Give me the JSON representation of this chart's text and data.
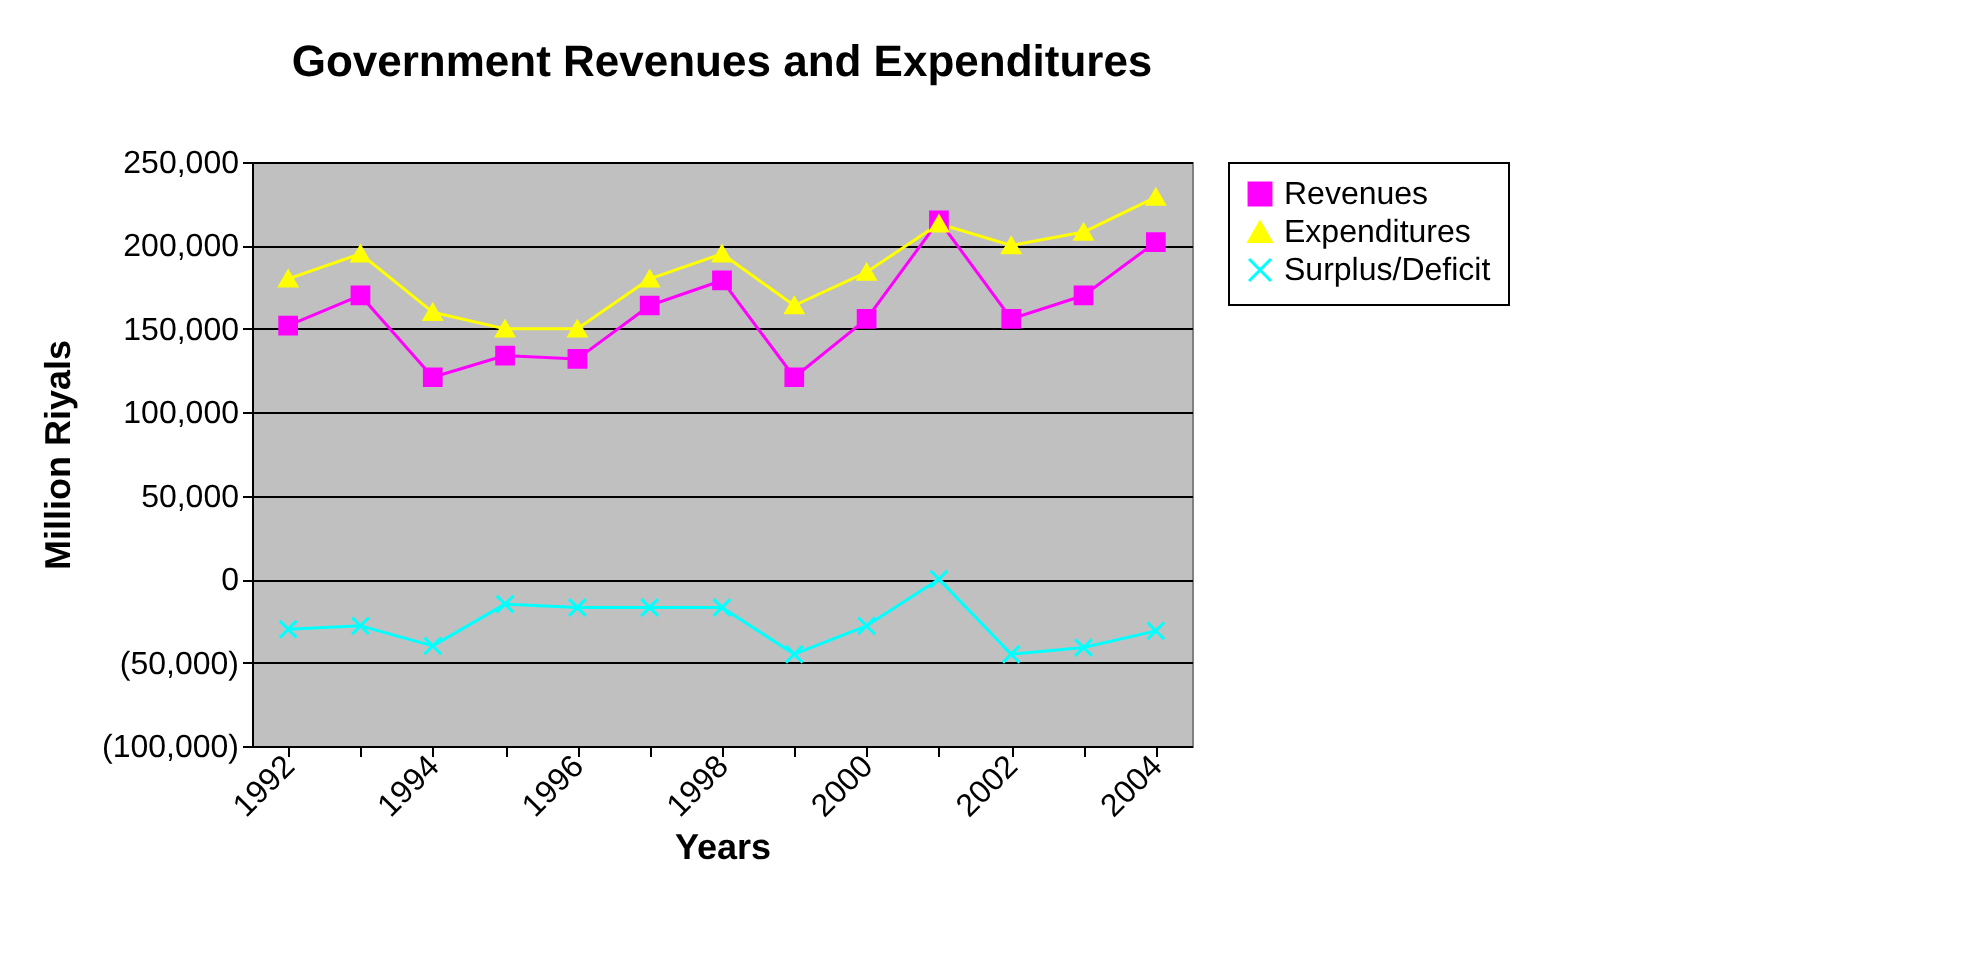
{
  "chart_data": {
    "type": "line",
    "title": "Government Revenues and Expenditures",
    "xlabel": "Years",
    "ylabel": "Million Riyals",
    "categories": [
      "1992",
      null,
      "1994",
      null,
      "1996",
      null,
      "1998",
      null,
      "2000",
      null,
      "2002",
      null,
      "2004"
    ],
    "series": [
      {
        "name": "Revenues",
        "color": "#ff00ff",
        "marker": "square",
        "values": [
          152000,
          170000,
          121000,
          134000,
          132000,
          164000,
          179000,
          121000,
          156000,
          215000,
          156000,
          170000,
          202000
        ]
      },
      {
        "name": "Expenditures",
        "color": "#ffff00",
        "marker": "triangle",
        "values": [
          180000,
          195000,
          160000,
          150000,
          150000,
          180000,
          195000,
          164000,
          184000,
          213000,
          200000,
          208000,
          229000
        ]
      },
      {
        "name": "Surplus/Deficit",
        "color": "#00ffff",
        "marker": "cross",
        "values": [
          -30000,
          -28000,
          -40000,
          -15000,
          -17000,
          -17000,
          -17000,
          -45000,
          -28000,
          0,
          -45000,
          -41000,
          -31000
        ]
      }
    ],
    "ylim": [
      -100000,
      250000
    ],
    "yticks": [
      {
        "value": -100000,
        "label": "(100,000)"
      },
      {
        "value": -50000,
        "label": "(50,000)"
      },
      0,
      {
        "value": 50000,
        "label": "50,000"
      },
      {
        "value": 100000,
        "label": "100,000"
      },
      {
        "value": 150000,
        "label": "150,000"
      },
      {
        "value": 200000,
        "label": "200,000"
      },
      {
        "value": 250000,
        "label": "250,000"
      }
    ],
    "grid": "y",
    "legend": "right",
    "line_style": "solid"
  }
}
